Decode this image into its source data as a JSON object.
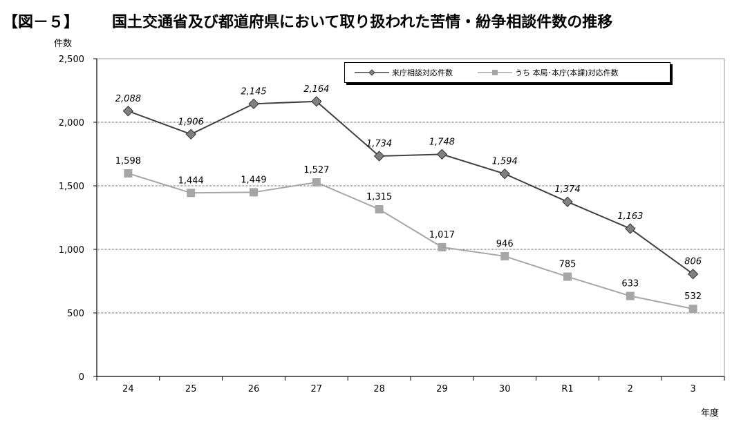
{
  "figure_label": "【図－５】",
  "chart_data": {
    "type": "line",
    "title": "国土交通省及び都道府県において取り扱われた苦情・紛争相談件数の推移",
    "ylabel": "件数",
    "xlabel": "年度",
    "categories": [
      "24",
      "25",
      "26",
      "27",
      "28",
      "29",
      "30",
      "R1",
      "2",
      "3"
    ],
    "ylim": [
      0,
      2500
    ],
    "yticks": [
      "0",
      "500",
      "1,000",
      "1,500",
      "2,000",
      "2,500"
    ],
    "grid": true,
    "legend_position": "top-right",
    "series": [
      {
        "name": "来庁相談対応件数",
        "marker": "diamond",
        "color": "#404040",
        "values": [
          2088,
          1906,
          2145,
          2164,
          1734,
          1748,
          1594,
          1374,
          1163,
          806
        ],
        "labels": [
          "2,088",
          "1,906",
          "2,145",
          "2,164",
          "1,734",
          "1,748",
          "1,594",
          "1,374",
          "1,163",
          "806"
        ]
      },
      {
        "name": "うち 本局･本庁(本課)対応件数",
        "marker": "square",
        "color": "#a6a6a6",
        "values": [
          1598,
          1444,
          1449,
          1527,
          1315,
          1017,
          946,
          785,
          633,
          532
        ],
        "labels": [
          "1,598",
          "1,444",
          "1,449",
          "1,527",
          "1,315",
          "1,017",
          "946",
          "785",
          "633",
          "532"
        ]
      }
    ]
  }
}
